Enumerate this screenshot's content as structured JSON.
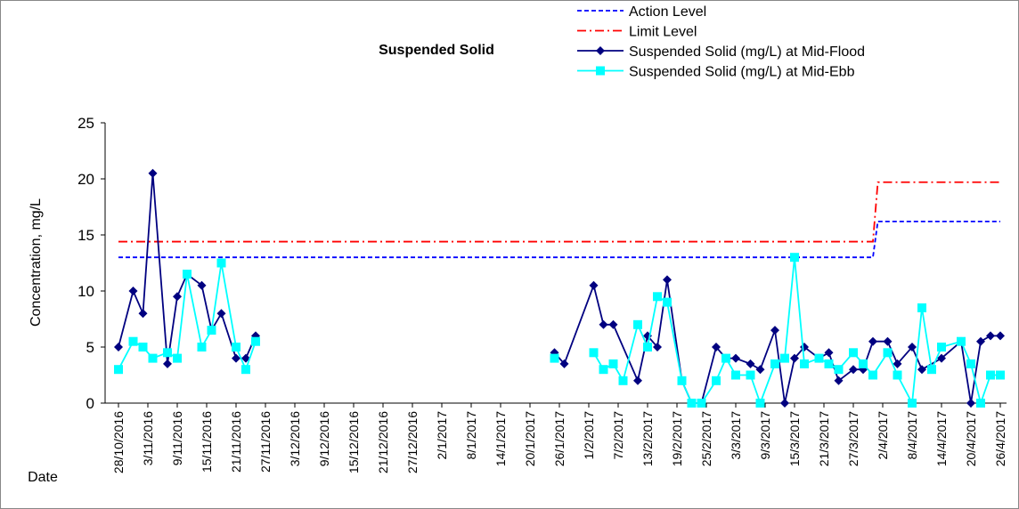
{
  "chart_data": {
    "type": "line",
    "title": "Suspended Solid",
    "ylabel": "Concentration, mg/L",
    "xlabel": "Date",
    "xlim": [
      "28/10/2016",
      "26/4/2017"
    ],
    "ylim": [
      0,
      25
    ],
    "yticks": [
      0,
      5,
      10,
      15,
      20,
      25
    ],
    "grid": false,
    "legend": "top-right",
    "xticks": [
      "28/10/2016",
      "3/11/2016",
      "9/11/2016",
      "15/11/2016",
      "21/11/2016",
      "27/11/2016",
      "3/12/2016",
      "9/12/2016",
      "15/12/2016",
      "21/12/2016",
      "27/12/2016",
      "2/1/2017",
      "8/1/2017",
      "14/1/2017",
      "20/1/2017",
      "26/1/2017",
      "1/2/2017",
      "7/2/2017",
      "13/2/2017",
      "19/2/2017",
      "25/2/2017",
      "3/3/2017",
      "9/3/2017",
      "15/3/2017",
      "21/3/2017",
      "27/3/2017",
      "2/4/2017",
      "8/4/2017",
      "14/4/2017",
      "20/4/2017",
      "26/4/2017"
    ],
    "series": [
      {
        "name": "Action Level",
        "color": "#0000ff",
        "dash": "dashed",
        "marker": "none",
        "x": [
          "28/10/2016",
          "31/3/2017",
          "1/4/2017",
          "26/4/2017"
        ],
        "values": [
          13,
          13,
          16.2,
          16.2
        ]
      },
      {
        "name": "Limit Level",
        "color": "#ff0000",
        "dash": "dashdot",
        "marker": "none",
        "x": [
          "28/10/2016",
          "31/3/2017",
          "1/4/2017",
          "26/4/2017"
        ],
        "values": [
          14.4,
          14.4,
          19.7,
          19.7
        ]
      },
      {
        "name": "Suspended Solid (mg/L) at Mid-Flood",
        "color": "#000080",
        "dash": "solid",
        "marker": "diamond",
        "x": [
          "28/10/2016",
          "31/10/2016",
          "2/11/2016",
          "4/11/2016",
          "7/11/2016",
          "9/11/2016",
          "11/11/2016",
          "14/11/2016",
          "16/11/2016",
          "18/11/2016",
          "21/11/2016",
          "23/11/2016",
          "25/11/2016",
          null,
          "25/1/2017",
          "27/1/2017",
          "2/2/2017",
          "4/2/2017",
          "6/2/2017",
          "11/2/2017",
          "13/2/2017",
          "15/2/2017",
          "17/2/2017",
          "20/2/2017",
          "22/2/2017",
          "24/2/2017",
          "27/2/2017",
          "1/3/2017",
          "3/3/2017",
          "6/3/2017",
          "8/3/2017",
          "11/3/2017",
          "13/3/2017",
          "15/3/2017",
          "17/3/2017",
          "20/3/2017",
          "22/3/2017",
          "24/3/2017",
          "27/3/2017",
          "29/3/2017",
          "31/3/2017",
          "3/4/2017",
          "5/4/2017",
          "8/4/2017",
          "10/4/2017",
          "14/4/2017",
          "18/4/2017",
          "20/4/2017",
          "22/4/2017",
          "24/4/2017",
          "26/4/2017"
        ],
        "values": [
          5,
          10,
          8,
          20.5,
          3.5,
          9.5,
          11.5,
          10.5,
          6.5,
          8,
          4,
          4,
          6,
          null,
          4.5,
          3.5,
          10.5,
          7,
          7,
          2,
          6,
          5,
          11,
          2,
          0,
          0,
          5,
          4,
          4,
          3.5,
          3,
          6.5,
          0,
          4,
          5,
          4,
          4.5,
          2,
          3,
          3,
          5.5,
          5.5,
          3.5,
          5,
          3,
          4,
          5.5,
          0,
          5.5,
          6,
          6
        ]
      },
      {
        "name": "Suspended Solid (mg/L) at Mid-Ebb",
        "color": "#00ffff",
        "dash": "solid",
        "marker": "square",
        "x": [
          "28/10/2016",
          "31/10/2016",
          "2/11/2016",
          "4/11/2016",
          "7/11/2016",
          "9/11/2016",
          "11/11/2016",
          "14/11/2016",
          "16/11/2016",
          "18/11/2016",
          "21/11/2016",
          "23/11/2016",
          "25/11/2016",
          null,
          "25/1/2017",
          null,
          "2/2/2017",
          "4/2/2017",
          "6/2/2017",
          "8/2/2017",
          "11/2/2017",
          "13/2/2017",
          "15/2/2017",
          "17/2/2017",
          "20/2/2017",
          "22/2/2017",
          "24/2/2017",
          "27/2/2017",
          "1/3/2017",
          "3/3/2017",
          "6/3/2017",
          "8/3/2017",
          "11/3/2017",
          "13/3/2017",
          "15/3/2017",
          "17/3/2017",
          "20/3/2017",
          "22/3/2017",
          "24/3/2017",
          "27/3/2017",
          "29/3/2017",
          "31/3/2017",
          "3/4/2017",
          "5/4/2017",
          "8/4/2017",
          "10/4/2017",
          "12/4/2017",
          "14/4/2017",
          "18/4/2017",
          "20/4/2017",
          "22/4/2017",
          "24/4/2017",
          "26/4/2017"
        ],
        "values": [
          3,
          5.5,
          5,
          4,
          4.5,
          4,
          11.5,
          5,
          6.5,
          12.5,
          5,
          3,
          5.5,
          null,
          4,
          null,
          4.5,
          3,
          3.5,
          2,
          7,
          5,
          9.5,
          9,
          2,
          0,
          0,
          2,
          4,
          2.5,
          2.5,
          0,
          3.5,
          4,
          13,
          3.5,
          4,
          3.5,
          3,
          4.5,
          3.5,
          2.5,
          4.5,
          2.5,
          0,
          8.5,
          3,
          5,
          5.5,
          3.5,
          0,
          2.5,
          2.5
        ]
      }
    ]
  }
}
